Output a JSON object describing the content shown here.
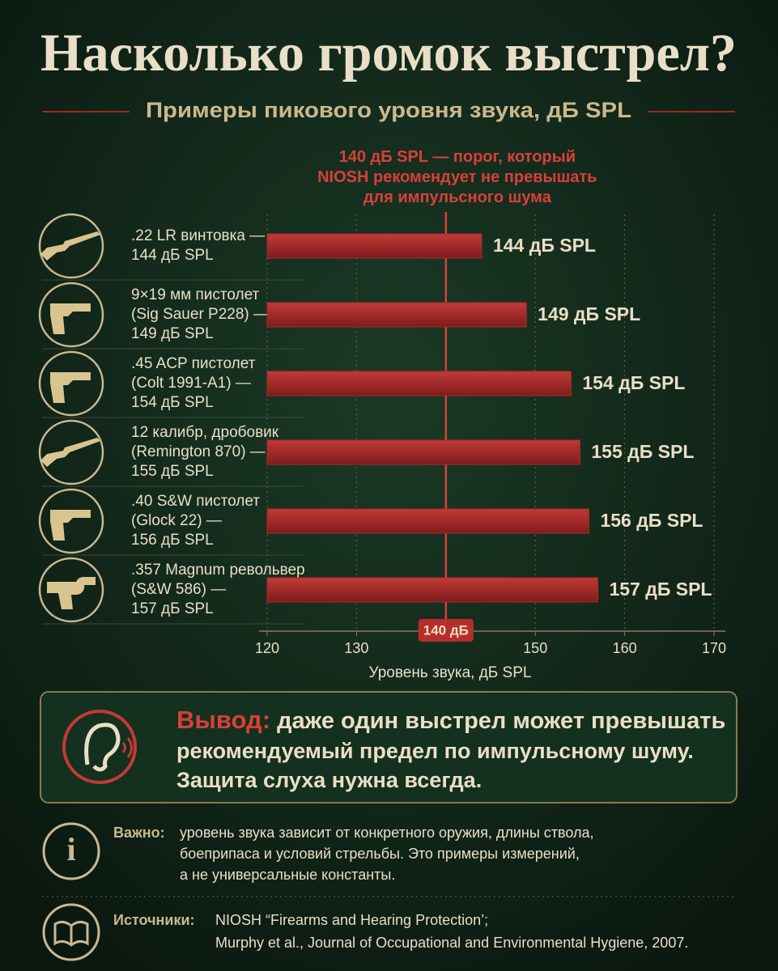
{
  "title": "Насколько громок выстрел?",
  "subtitle": "Примеры пикового уровня звука, дБ SPL",
  "chart_data": {
    "type": "bar",
    "orientation": "horizontal",
    "threshold": {
      "value": 140,
      "label": "140 дБ SPL — порог, который\nNIOSH рекомендует не превышать\nдля импульсного шума"
    },
    "categories": [
      ".22 LR винтовка —\n144 дБ SPL",
      "9×19 мм пистолет\n(Sig Sauer P228) —\n149 дБ SPL",
      ".45 ACP пистолет\n(Colt 1991-A1) —\n154 дБ SPL",
      "12 калибр, дробовик\n(Remington 870) —\n155 дБ SPL",
      ".40 S&W пистолет\n(Glock 22) —\n156 дБ SPL",
      ".357 Magnum револьвер\n(S&W 586) —\n157 дБ SPL"
    ],
    "values": [
      144,
      149,
      154,
      155,
      156,
      157
    ],
    "value_labels": [
      "144 дБ SPL",
      "149 дБ SPL",
      "154 дБ SPL",
      "155 дБ SPL",
      "156 дБ SPL",
      "157 дБ SPL"
    ],
    "color": "#a82b2b",
    "threshold_color": "#d8403a",
    "xlim": [
      120,
      170
    ],
    "xticks": [
      120,
      130,
      {
        "value": 140,
        "label": "140 дБ"
      },
      150,
      160,
      170
    ],
    "xlabel": "Уровень звука, дБ SPL",
    "grid": true
  },
  "conclusion": {
    "label": "Вывод:",
    "lines": [
      "даже один выстрел может превышать",
      "рекомендуемый предел по импульсному шуму.",
      "Защита слуха нужна всегда."
    ]
  },
  "note": {
    "label": "Важно:",
    "lines": [
      "уровень звука зависит от конкретного оружия, длины ствола,",
      "боеприпаса и условий стрельбы. Это примеры измерений,",
      "а не универсальные константы."
    ]
  },
  "sources": {
    "label": "Источники:",
    "lines": [
      "NIOSH “Firearms and Hearing Protection’;",
      "Murphy et al., Journal of Occupational and Environmental Hygiene, 2007."
    ]
  }
}
